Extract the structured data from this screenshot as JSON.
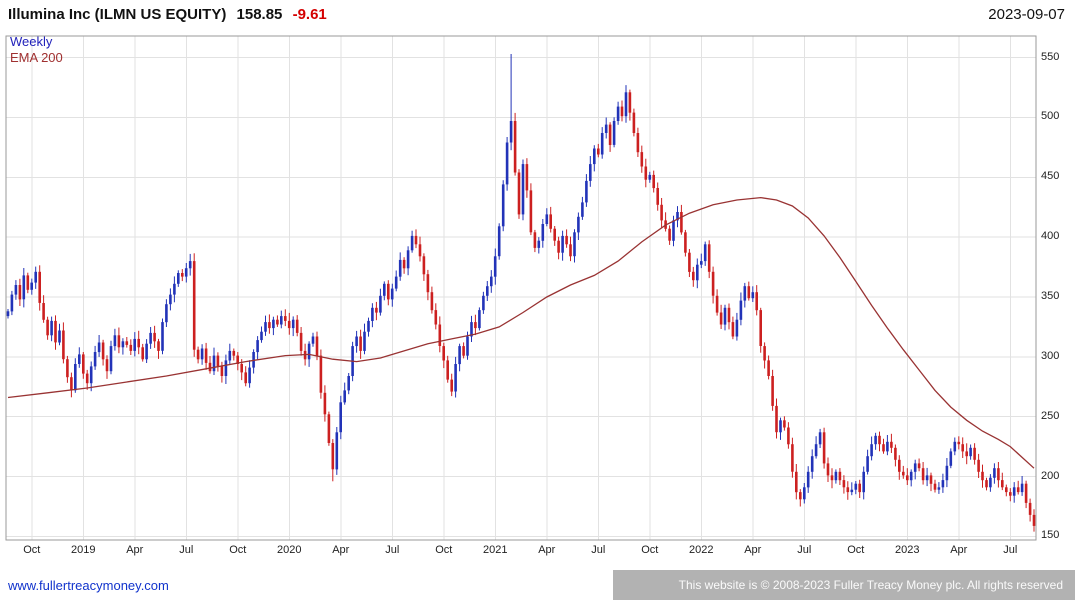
{
  "header": {
    "title": "Illumina Inc (ILMN US EQUITY)",
    "last_price": "158.85",
    "change": "-9.61",
    "date": "2023-09-07"
  },
  "legend": {
    "series": "Weekly",
    "overlay": "EMA 200"
  },
  "footer": {
    "link": "www.fullertreacymoney.com",
    "copyright": "This website is © 2008-2023 Fuller Treacy Money plc. All rights reserved"
  },
  "colors": {
    "up": "#2233b8",
    "down": "#cc2020",
    "ema": "#993333",
    "grid": "#e2e2e2",
    "border": "#9a9a9a",
    "axis_text": "#222222",
    "change_text": "#d40000",
    "link_text": "#1133cc",
    "copyright_bg": "#b2b2b2"
  },
  "chart_data": {
    "type": "candlestick",
    "title": "Illumina Inc (ILMN US EQUITY) 158.85 -9.61",
    "timeframe": "Weekly",
    "overlay": "EMA 200",
    "legend_position": "top-left",
    "grid": true,
    "ylim": [
      147,
      568
    ],
    "yticks": [
      150,
      200,
      250,
      300,
      350,
      400,
      450,
      500,
      550
    ],
    "xticks": [
      {
        "label": "Oct",
        "week": 6
      },
      {
        "label": "2019",
        "week": 19
      },
      {
        "label": "Apr",
        "week": 32
      },
      {
        "label": "Jul",
        "week": 45
      },
      {
        "label": "Oct",
        "week": 58
      },
      {
        "label": "2020",
        "week": 71
      },
      {
        "label": "Apr",
        "week": 84
      },
      {
        "label": "Jul",
        "week": 97
      },
      {
        "label": "Oct",
        "week": 110
      },
      {
        "label": "2021",
        "week": 123
      },
      {
        "label": "Apr",
        "week": 136
      },
      {
        "label": "Jul",
        "week": 149
      },
      {
        "label": "Oct",
        "week": 162
      },
      {
        "label": "2022",
        "week": 175
      },
      {
        "label": "Apr",
        "week": 188
      },
      {
        "label": "Jul",
        "week": 201
      },
      {
        "label": "Oct",
        "week": 214
      },
      {
        "label": "2023",
        "week": 227
      },
      {
        "label": "Apr",
        "week": 240
      },
      {
        "label": "Jul",
        "week": 253
      }
    ],
    "closes": [
      338,
      352,
      360,
      348,
      368,
      356,
      362,
      371,
      345,
      331,
      318,
      330,
      312,
      322,
      298,
      283,
      272,
      294,
      302,
      286,
      278,
      292,
      304,
      312,
      298,
      288,
      309,
      318,
      308,
      313,
      310,
      305,
      315,
      308,
      298,
      311,
      320,
      313,
      305,
      329,
      344,
      352,
      361,
      370,
      367,
      374,
      380,
      306,
      298,
      307,
      295,
      288,
      301,
      292,
      284,
      297,
      305,
      301,
      294,
      287,
      278,
      291,
      304,
      314,
      321,
      329,
      324,
      331,
      327,
      334,
      330,
      324,
      331,
      320,
      305,
      298,
      311,
      317,
      301,
      270,
      252,
      228,
      206,
      237,
      262,
      272,
      284,
      309,
      317,
      305,
      321,
      330,
      341,
      337,
      351,
      361,
      348,
      357,
      367,
      381,
      374,
      389,
      401,
      394,
      384,
      369,
      354,
      339,
      327,
      309,
      297,
      281,
      271,
      294,
      309,
      301,
      317,
      329,
      324,
      339,
      351,
      359,
      367,
      384,
      409,
      444,
      479,
      497,
      454,
      419,
      461,
      439,
      404,
      391,
      397,
      411,
      419,
      407,
      397,
      387,
      401,
      394,
      384,
      404,
      417,
      429,
      447,
      461,
      474,
      469,
      487,
      494,
      477,
      497,
      509,
      501,
      521,
      504,
      487,
      471,
      459,
      448,
      452,
      441,
      427,
      414,
      407,
      397,
      414,
      421,
      404,
      387,
      371,
      364,
      377,
      380,
      394,
      371,
      351,
      337,
      327,
      341,
      329,
      317,
      331,
      347,
      359,
      349,
      354,
      339,
      309,
      297,
      284,
      259,
      237,
      247,
      241,
      227,
      204,
      187,
      181,
      191,
      204,
      217,
      227,
      237,
      211,
      201,
      197,
      204,
      197,
      191,
      187,
      189,
      194,
      187,
      204,
      217,
      227,
      234,
      227,
      221,
      229,
      224,
      214,
      204,
      201,
      197,
      204,
      211,
      207,
      197,
      201,
      194,
      189,
      191,
      197,
      209,
      221,
      229,
      227,
      221,
      217,
      224,
      214,
      204,
      197,
      191,
      199,
      207,
      197,
      191,
      187,
      184,
      191,
      187,
      194,
      178,
      168,
      158.85
    ],
    "extremes": {
      "46": {
        "high": 386
      },
      "47": {
        "low": 300
      },
      "82": {
        "low": 196
      },
      "127": {
        "high": 553
      },
      "156": {
        "high": 527
      },
      "200": {
        "low": 175
      },
      "259": {
        "low": 154
      }
    },
    "ema_points": [
      [
        0,
        266
      ],
      [
        10,
        270
      ],
      [
        20,
        274
      ],
      [
        30,
        279
      ],
      [
        40,
        284
      ],
      [
        50,
        290
      ],
      [
        60,
        296
      ],
      [
        70,
        301
      ],
      [
        76,
        302
      ],
      [
        82,
        298
      ],
      [
        88,
        296
      ],
      [
        94,
        299
      ],
      [
        100,
        305
      ],
      [
        106,
        311
      ],
      [
        112,
        315
      ],
      [
        118,
        319
      ],
      [
        124,
        325
      ],
      [
        130,
        337
      ],
      [
        136,
        350
      ],
      [
        142,
        360
      ],
      [
        148,
        368
      ],
      [
        154,
        380
      ],
      [
        160,
        396
      ],
      [
        166,
        410
      ],
      [
        172,
        420
      ],
      [
        178,
        427
      ],
      [
        184,
        431
      ],
      [
        190,
        433
      ],
      [
        194,
        431
      ],
      [
        198,
        426
      ],
      [
        202,
        416
      ],
      [
        206,
        401
      ],
      [
        210,
        383
      ],
      [
        214,
        363
      ],
      [
        218,
        343
      ],
      [
        222,
        324
      ],
      [
        226,
        306
      ],
      [
        230,
        289
      ],
      [
        234,
        272
      ],
      [
        238,
        258
      ],
      [
        242,
        247
      ],
      [
        246,
        238
      ],
      [
        250,
        231
      ],
      [
        253,
        225
      ],
      [
        256,
        216
      ],
      [
        259,
        207
      ]
    ]
  }
}
